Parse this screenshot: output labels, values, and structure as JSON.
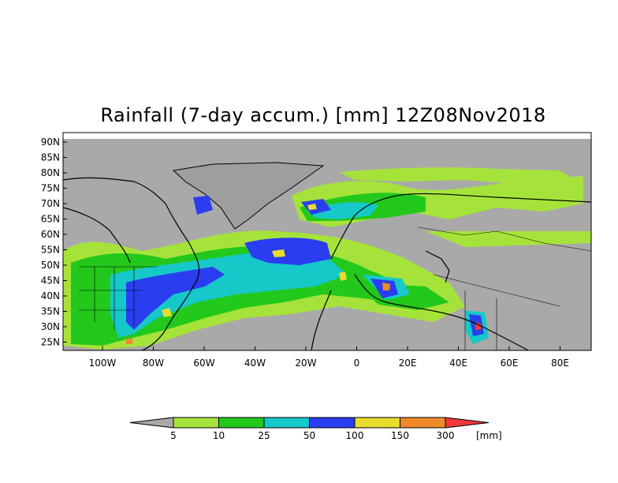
{
  "title": "Rainfall (7-day accum.) [mm] 12Z08Nov2018",
  "map": {
    "lat_labels": [
      "90N",
      "85N",
      "80N",
      "75N",
      "70N",
      "65N",
      "60N",
      "55N",
      "50N",
      "45N",
      "40N",
      "35N",
      "30N",
      "25N"
    ],
    "lon_labels": [
      "100W",
      "80W",
      "60W",
      "40W",
      "20W",
      "0",
      "20E",
      "40E",
      "60E",
      "80E"
    ],
    "background_color": "#a9a9a9",
    "land_color": "#a9a9a9"
  },
  "colorbar": {
    "levels": [
      "5",
      "10",
      "25",
      "50",
      "100",
      "150",
      "300"
    ],
    "unit": "[mm]",
    "colors": [
      "#a9a9a9",
      "#a6e33a",
      "#23c81c",
      "#16c8c8",
      "#2a3df0",
      "#e8dc2e",
      "#ef8a2a",
      "#f0383a"
    ]
  }
}
